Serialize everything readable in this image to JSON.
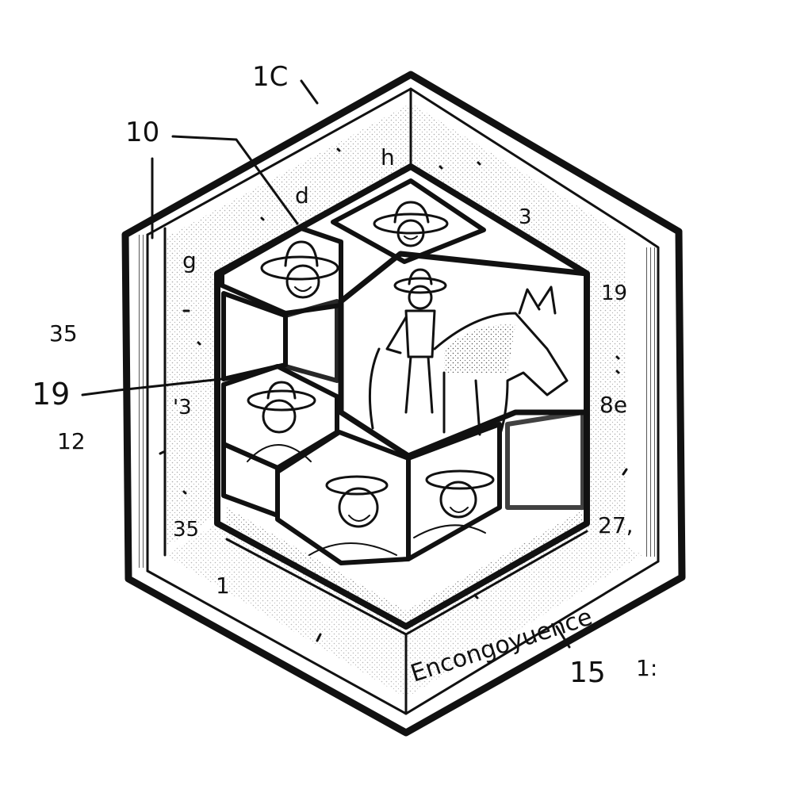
{
  "labels": {
    "top_1c": "1C",
    "top_10": "10",
    "d": "d",
    "h": "h",
    "three_top": "3",
    "g": "g",
    "n19_right": "19",
    "n35_left": "35",
    "n19_left": "19",
    "n12": "12",
    "n3_inner": "'3",
    "n8e": "8e",
    "n35_lower": "35",
    "n27": "27,",
    "n1": "1",
    "n15": "15",
    "n1_right": "1:",
    "caption": "Encongoyuence"
  },
  "colors": {
    "ink": "#111111",
    "paper": "#ffffff"
  }
}
